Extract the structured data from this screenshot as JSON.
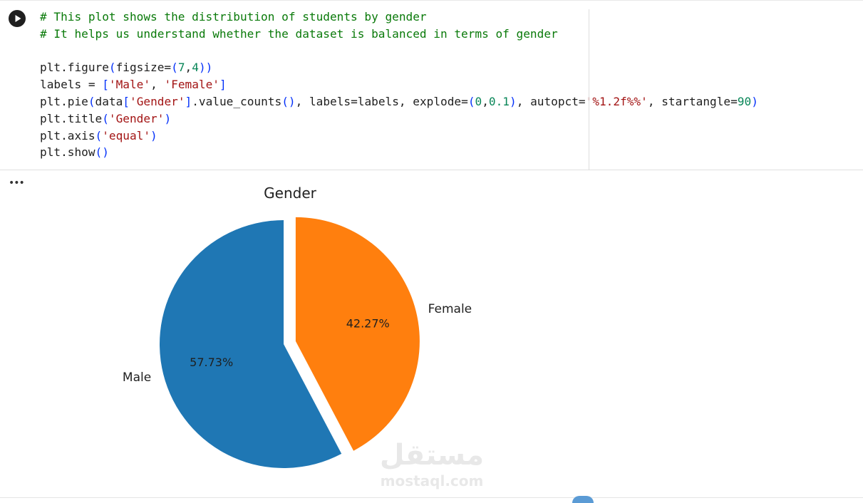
{
  "cell": {
    "code_lines": [
      [
        [
          "comment",
          "# This plot shows the distribution of students by gender"
        ]
      ],
      [
        [
          "comment",
          "# It helps us understand whether the dataset is balanced in terms of gender"
        ]
      ],
      [],
      [
        [
          "plain",
          "plt.figure"
        ],
        [
          "paren",
          "("
        ],
        [
          "plain",
          "figsize="
        ],
        [
          "paren",
          "("
        ],
        [
          "num",
          "7"
        ],
        [
          "plain",
          ","
        ],
        [
          "num",
          "4"
        ],
        [
          "paren",
          ")"
        ],
        [
          "paren",
          ")"
        ]
      ],
      [
        [
          "plain",
          "labels = "
        ],
        [
          "paren",
          "["
        ],
        [
          "str",
          "'Male'"
        ],
        [
          "plain",
          ", "
        ],
        [
          "str",
          "'Female'"
        ],
        [
          "paren",
          "]"
        ]
      ],
      [
        [
          "plain",
          "plt.pie"
        ],
        [
          "paren",
          "("
        ],
        [
          "plain",
          "data"
        ],
        [
          "paren",
          "["
        ],
        [
          "str",
          "'Gender'"
        ],
        [
          "paren",
          "]"
        ],
        [
          "plain",
          ".value_counts"
        ],
        [
          "paren",
          "()"
        ],
        [
          "plain",
          ", labels=labels, explode="
        ],
        [
          "paren",
          "("
        ],
        [
          "num",
          "0"
        ],
        [
          "plain",
          ","
        ],
        [
          "num",
          "0.1"
        ],
        [
          "paren",
          ")"
        ],
        [
          "plain",
          ", autopct="
        ],
        [
          "str",
          "'%1.2f%%'"
        ],
        [
          "plain",
          ", startangle="
        ],
        [
          "num",
          "90"
        ],
        [
          "paren",
          ")"
        ]
      ],
      [
        [
          "plain",
          "plt.title"
        ],
        [
          "paren",
          "("
        ],
        [
          "str",
          "'Gender'"
        ],
        [
          "paren",
          ")"
        ]
      ],
      [
        [
          "plain",
          "plt.axis"
        ],
        [
          "paren",
          "("
        ],
        [
          "str",
          "'equal'"
        ],
        [
          "paren",
          ")"
        ]
      ],
      [
        [
          "plain",
          "plt.show"
        ],
        [
          "paren",
          "()"
        ]
      ]
    ]
  },
  "output": {
    "menu_label": "•••"
  },
  "chart_data": {
    "type": "pie",
    "title": "Gender",
    "labels": [
      "Male",
      "Female"
    ],
    "values": [
      57.73,
      42.27
    ],
    "autopct_labels": [
      "57.73%",
      "42.27%"
    ],
    "explode": [
      0,
      0.1
    ],
    "startangle": 90,
    "counterclock": true,
    "colors": [
      "#1f77b4",
      "#ff7f0e"
    ]
  },
  "watermark": {
    "arabic": "مستقل",
    "latin": "mostaql.com"
  }
}
